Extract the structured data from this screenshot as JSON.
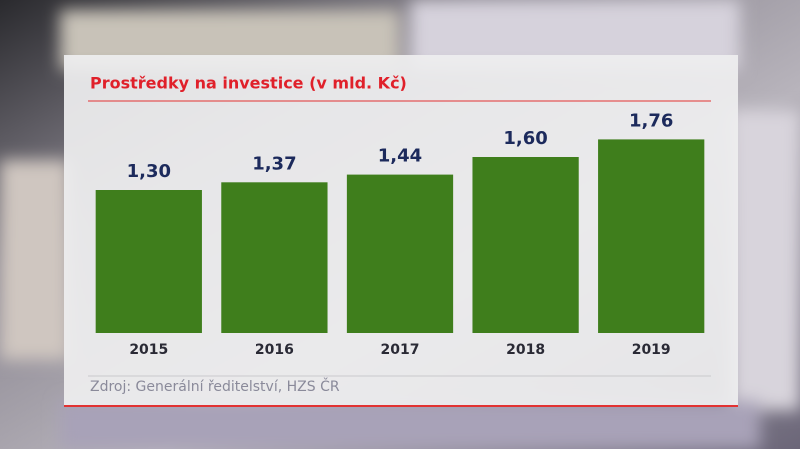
{
  "chart_data": {
    "type": "bar",
    "title": "Prostředky na investice (v mld. Kč)",
    "source": "Zdroj: Generální ředitelství, HZS ČR",
    "categories": [
      "2015",
      "2016",
      "2017",
      "2018",
      "2019"
    ],
    "values": [
      1.3,
      1.37,
      1.44,
      1.6,
      1.76
    ],
    "value_labels": [
      "1,30",
      "1,37",
      "1,44",
      "1,60",
      "1,76"
    ],
    "color": "#3f7e1c",
    "ylim": [
      0,
      2
    ]
  }
}
